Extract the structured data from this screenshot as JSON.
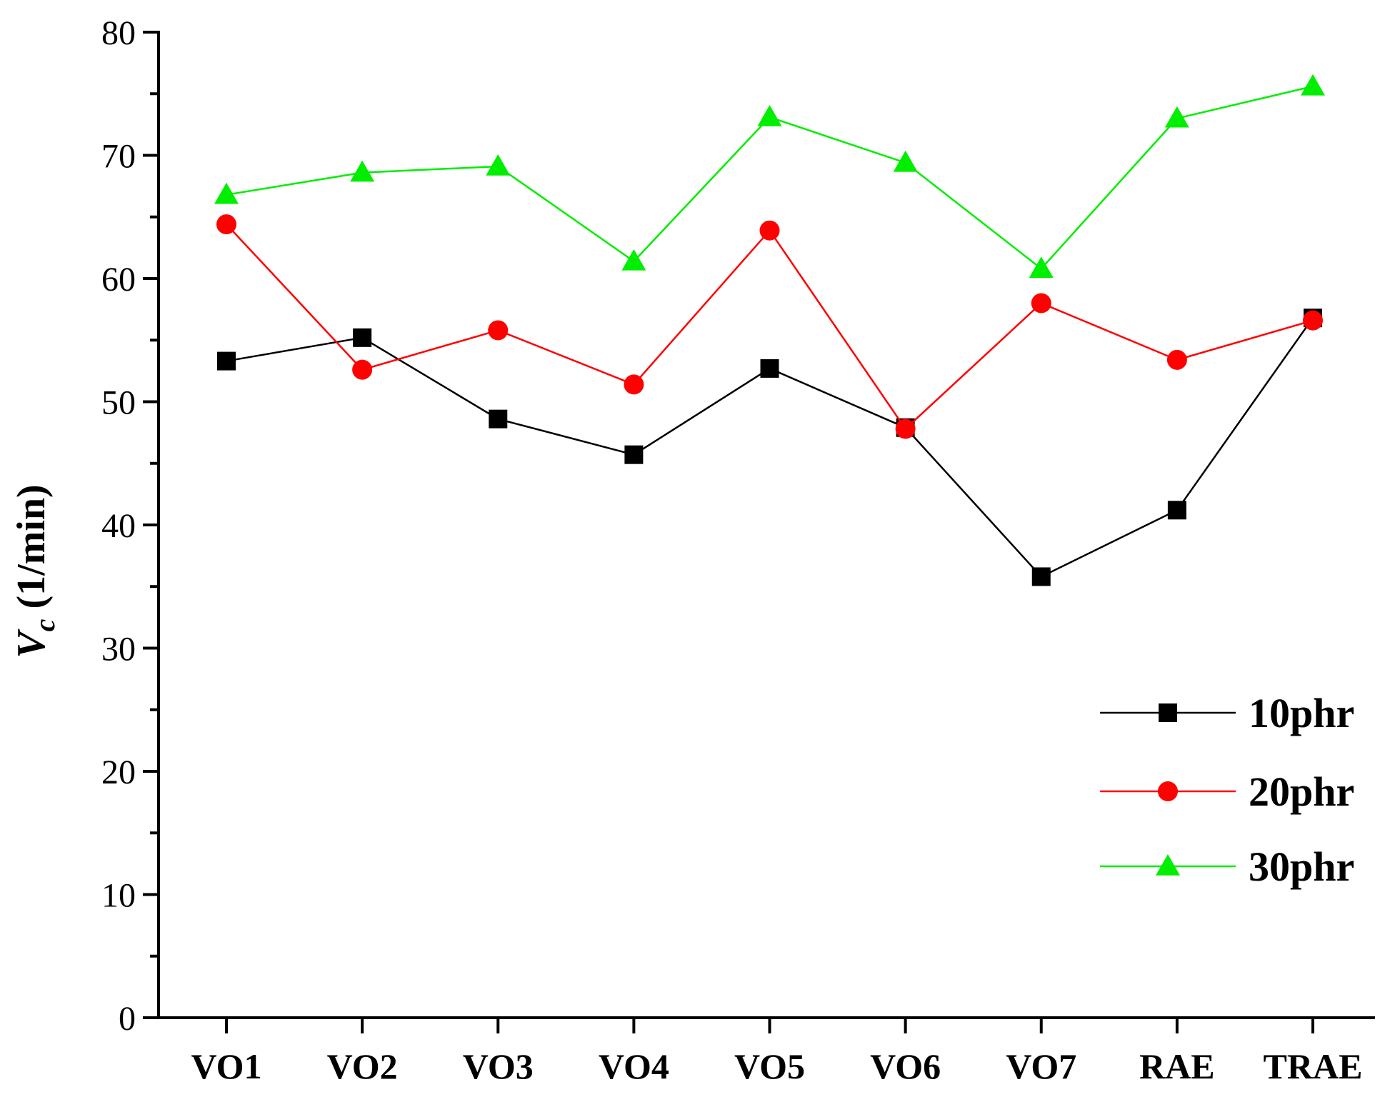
{
  "chart_data": {
    "type": "line",
    "title": "",
    "xlabel": "",
    "ylabel": "V_c (1/min)",
    "ylabel_main": "V",
    "ylabel_sub": "c",
    "ylabel_unit": " (1/min)",
    "categories": [
      "VO1",
      "VO2",
      "VO3",
      "VO4",
      "VO5",
      "VO6",
      "VO7",
      "RAE",
      "TRAE"
    ],
    "ylim": [
      0,
      80
    ],
    "yticks": [
      0,
      10,
      20,
      30,
      40,
      50,
      60,
      70,
      80
    ],
    "grid": false,
    "legend_position": "right",
    "series": [
      {
        "name": "10phr",
        "color": "#000000",
        "marker": "square",
        "values": [
          53.3,
          55.2,
          48.6,
          45.7,
          52.7,
          47.9,
          35.8,
          41.2,
          56.8
        ]
      },
      {
        "name": "20phr",
        "color": "#ff0000",
        "marker": "circle",
        "values": [
          64.4,
          52.6,
          55.8,
          51.4,
          63.9,
          47.8,
          58.0,
          53.4,
          56.6
        ]
      },
      {
        "name": "30phr",
        "color": "#00ee00",
        "marker": "triangle",
        "values": [
          66.8,
          68.6,
          69.1,
          61.4,
          73.1,
          69.4,
          60.8,
          73.0,
          75.6
        ]
      }
    ]
  }
}
